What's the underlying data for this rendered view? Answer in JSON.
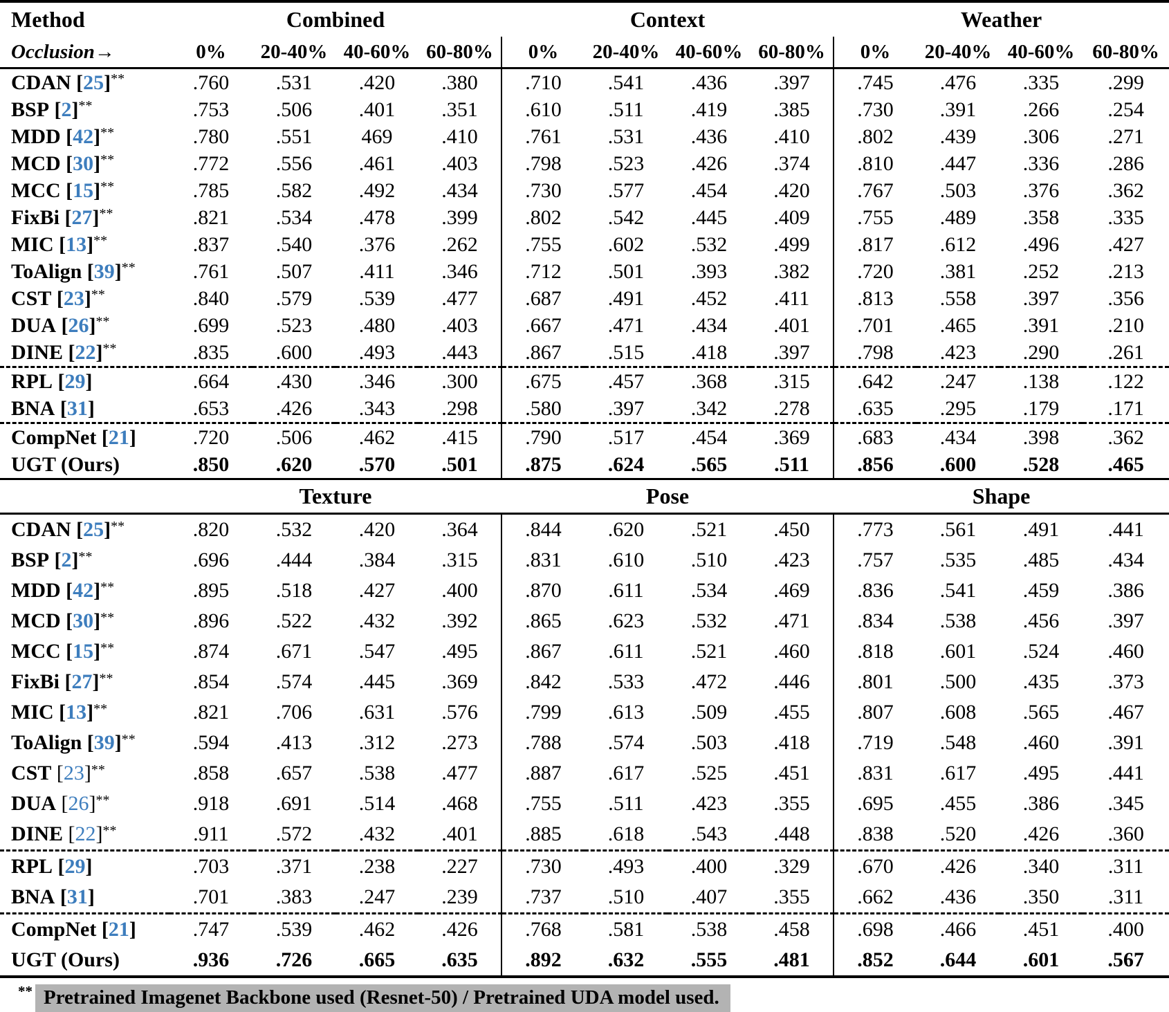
{
  "table": {
    "method_header": "Method",
    "occlusion_header": "Occlusion→",
    "pct_headers": [
      "0%",
      "20-40%",
      "40-60%",
      "60-80%"
    ],
    "stars_marker": "**",
    "accent_color": "#3d7dbd",
    "footnote": {
      "marker": "**",
      "text": "Pretrained Imagenet Backbone used (Resnet-50) / Pretrained UDA model used.",
      "highlight_color": "#b3b3b3"
    },
    "sections": [
      {
        "groups": [
          "Combined",
          "Context",
          "Weather"
        ],
        "rows": [
          {
            "method": "CDAN",
            "ref": "25",
            "stars": true,
            "values": [
              ".760",
              ".531",
              ".420",
              ".380",
              ".710",
              ".541",
              ".436",
              ".397",
              ".745",
              ".476",
              ".335",
              ".299"
            ]
          },
          {
            "method": "BSP",
            "ref": "2",
            "stars": true,
            "values": [
              ".753",
              ".506",
              ".401",
              ".351",
              ".610",
              ".511",
              ".419",
              ".385",
              ".730",
              ".391",
              ".266",
              ".254"
            ]
          },
          {
            "method": "MDD",
            "ref": "42",
            "stars": true,
            "values": [
              ".780",
              ".551",
              "469",
              ".410",
              ".761",
              ".531",
              ".436",
              ".410",
              ".802",
              ".439",
              ".306",
              ".271"
            ]
          },
          {
            "method": "MCD",
            "ref": "30",
            "stars": true,
            "values": [
              ".772",
              ".556",
              ".461",
              ".403",
              ".798",
              ".523",
              ".426",
              ".374",
              ".810",
              ".447",
              ".336",
              ".286"
            ]
          },
          {
            "method": "MCC",
            "ref": "15",
            "stars": true,
            "values": [
              ".785",
              ".582",
              ".492",
              ".434",
              ".730",
              ".577",
              ".454",
              ".420",
              ".767",
              ".503",
              ".376",
              ".362"
            ]
          },
          {
            "method": "FixBi",
            "ref": "27",
            "stars": true,
            "values": [
              ".821",
              ".534",
              ".478",
              ".399",
              ".802",
              ".542",
              ".445",
              ".409",
              ".755",
              ".489",
              ".358",
              ".335"
            ]
          },
          {
            "method": "MIC",
            "ref": "13",
            "stars": true,
            "values": [
              ".837",
              ".540",
              ".376",
              ".262",
              ".755",
              ".602",
              ".532",
              ".499",
              ".817",
              ".612",
              ".496",
              ".427"
            ]
          },
          {
            "method": "ToAlign",
            "ref": "39",
            "stars": true,
            "values": [
              ".761",
              ".507",
              ".411",
              ".346",
              ".712",
              ".501",
              ".393",
              ".382",
              ".720",
              ".381",
              ".252",
              ".213"
            ]
          },
          {
            "method": "CST",
            "ref": "23",
            "stars": true,
            "values": [
              ".840",
              ".579",
              ".539",
              ".477",
              ".687",
              ".491",
              ".452",
              ".411",
              ".813",
              ".558",
              ".397",
              ".356"
            ]
          },
          {
            "method": "DUA",
            "ref": "26",
            "stars": true,
            "values": [
              ".699",
              ".523",
              ".480",
              ".403",
              ".667",
              ".471",
              ".434",
              ".401",
              ".701",
              ".465",
              ".391",
              ".210"
            ]
          },
          {
            "method": "DINE",
            "ref": "22",
            "stars": true,
            "values": [
              ".835",
              ".600",
              ".493",
              ".443",
              ".867",
              ".515",
              ".418",
              ".397",
              ".798",
              ".423",
              ".290",
              ".261"
            ]
          },
          {
            "method": "RPL",
            "ref": "29",
            "stars": false,
            "dashed_above": true,
            "values": [
              ".664",
              ".430",
              ".346",
              ".300",
              ".675",
              ".457",
              ".368",
              ".315",
              ".642",
              ".247",
              ".138",
              ".122"
            ]
          },
          {
            "method": "BNA",
            "ref": "31",
            "stars": false,
            "values": [
              ".653",
              ".426",
              ".343",
              ".298",
              ".580",
              ".397",
              ".342",
              ".278",
              ".635",
              ".295",
              ".179",
              ".171"
            ]
          },
          {
            "method": "CompNet",
            "ref": "21",
            "stars": false,
            "dashed_above": true,
            "values": [
              ".720",
              ".506",
              ".462",
              ".415",
              ".790",
              ".517",
              ".454",
              ".369",
              ".683",
              ".434",
              ".398",
              ".362"
            ]
          },
          {
            "method": "UGT (Ours)",
            "ref": null,
            "stars": false,
            "bold": true,
            "values": [
              ".850",
              ".620",
              ".570",
              ".501",
              ".875",
              ".624",
              ".565",
              ".511",
              ".856",
              ".600",
              ".528",
              ".465"
            ]
          }
        ]
      },
      {
        "groups": [
          "Texture",
          "Pose",
          "Shape"
        ],
        "rows": [
          {
            "method": "CDAN",
            "ref": "25",
            "stars": true,
            "values": [
              ".820",
              ".532",
              ".420",
              ".364",
              ".844",
              ".620",
              ".521",
              ".450",
              ".773",
              ".561",
              ".491",
              ".441"
            ]
          },
          {
            "method": "BSP",
            "ref": "2",
            "stars": true,
            "values": [
              ".696",
              ".444",
              ".384",
              ".315",
              ".831",
              ".610",
              ".510",
              ".423",
              ".757",
              ".535",
              ".485",
              ".434"
            ]
          },
          {
            "method": "MDD",
            "ref": "42",
            "stars": true,
            "values": [
              ".895",
              ".518",
              ".427",
              ".400",
              ".870",
              ".611",
              ".534",
              ".469",
              ".836",
              ".541",
              ".459",
              ".386"
            ]
          },
          {
            "method": "MCD",
            "ref": "30",
            "stars": true,
            "values": [
              ".896",
              ".522",
              ".432",
              ".392",
              ".865",
              ".623",
              ".532",
              ".471",
              ".834",
              ".538",
              ".456",
              ".397"
            ]
          },
          {
            "method": "MCC",
            "ref": "15",
            "stars": true,
            "values": [
              ".874",
              ".671",
              ".547",
              ".495",
              ".867",
              ".611",
              ".521",
              ".460",
              ".818",
              ".601",
              ".524",
              ".460"
            ]
          },
          {
            "method": "FixBi",
            "ref": "27",
            "stars": true,
            "values": [
              ".854",
              ".574",
              ".445",
              ".369",
              ".842",
              ".533",
              ".472",
              ".446",
              ".801",
              ".500",
              ".435",
              ".373"
            ]
          },
          {
            "method": "MIC",
            "ref": "13",
            "stars": true,
            "values": [
              ".821",
              ".706",
              ".631",
              ".576",
              ".799",
              ".613",
              ".509",
              ".455",
              ".807",
              ".608",
              ".565",
              ".467"
            ]
          },
          {
            "method": "ToAlign",
            "ref": "39",
            "stars": true,
            "values": [
              ".594",
              ".413",
              ".312",
              ".273",
              ".788",
              ".574",
              ".503",
              ".418",
              ".719",
              ".548",
              ".460",
              ".391"
            ]
          },
          {
            "method": "CST",
            "ref": "23",
            "stars": true,
            "cite_light": true,
            "values": [
              ".858",
              ".657",
              ".538",
              ".477",
              ".887",
              ".617",
              ".525",
              ".451",
              ".831",
              ".617",
              ".495",
              ".441"
            ]
          },
          {
            "method": "DUA",
            "ref": "26",
            "stars": true,
            "cite_light": true,
            "values": [
              ".918",
              ".691",
              ".514",
              ".468",
              ".755",
              ".511",
              ".423",
              ".355",
              ".695",
              ".455",
              ".386",
              ".345"
            ]
          },
          {
            "method": "DINE",
            "ref": "22",
            "stars": true,
            "cite_light": true,
            "values": [
              ".911",
              ".572",
              ".432",
              ".401",
              ".885",
              ".618",
              ".543",
              ".448",
              ".838",
              ".520",
              ".426",
              ".360"
            ]
          },
          {
            "method": "RPL",
            "ref": "29",
            "stars": false,
            "dashed_above": true,
            "values": [
              ".703",
              ".371",
              ".238",
              ".227",
              ".730",
              ".493",
              ".400",
              ".329",
              ".670",
              ".426",
              ".340",
              ".311"
            ]
          },
          {
            "method": "BNA",
            "ref": "31",
            "stars": false,
            "values": [
              ".701",
              ".383",
              ".247",
              ".239",
              ".737",
              ".510",
              ".407",
              ".355",
              ".662",
              ".436",
              ".350",
              ".311"
            ]
          },
          {
            "method": "CompNet",
            "ref": "21",
            "stars": false,
            "dashed_above": true,
            "values": [
              ".747",
              ".539",
              ".462",
              ".426",
              ".768",
              ".581",
              ".538",
              ".458",
              ".698",
              ".466",
              ".451",
              ".400"
            ]
          },
          {
            "method": "UGT (Ours)",
            "ref": null,
            "stars": false,
            "bold": true,
            "values": [
              ".936",
              ".726",
              ".665",
              ".635",
              ".892",
              ".632",
              ".555",
              ".481",
              ".852",
              ".644",
              ".601",
              ".567"
            ]
          }
        ]
      }
    ]
  }
}
